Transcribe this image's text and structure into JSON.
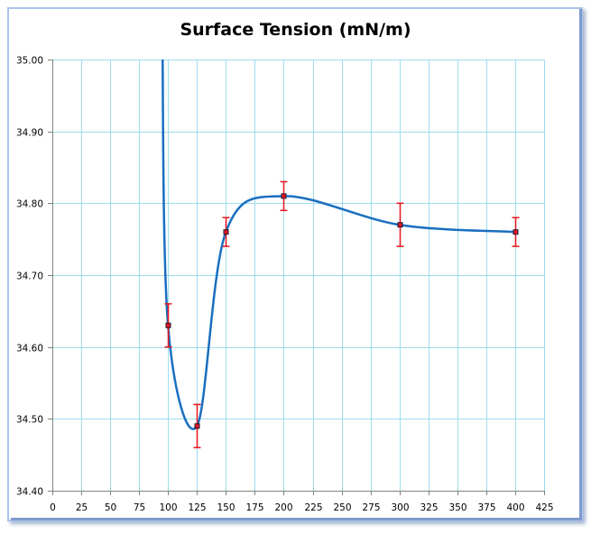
{
  "chart_data": {
    "type": "scatter",
    "title": "Surface Tension (mN/m)",
    "xlabel": "",
    "ylabel": "",
    "xlim": [
      0,
      425
    ],
    "ylim": [
      34.4,
      35.0
    ],
    "x_ticks": [
      0,
      25,
      50,
      75,
      100,
      125,
      150,
      175,
      200,
      225,
      250,
      275,
      300,
      325,
      350,
      375,
      400,
      425
    ],
    "x_tick_labels": [
      "0",
      "25",
      "50",
      "75",
      "100",
      "125",
      "150",
      "175",
      "200",
      "225",
      "250",
      "275",
      "300",
      "325",
      "350",
      "375",
      "400",
      "425"
    ],
    "y_ticks": [
      34.4,
      34.5,
      34.6,
      34.7,
      34.8,
      34.9,
      35.0
    ],
    "y_tick_labels": [
      "34.40",
      "34.50",
      "34.60",
      "34.70",
      "34.80",
      "34.90",
      "35.00"
    ],
    "grid": true,
    "legend": "none",
    "series": [
      {
        "name": "Surface Tension",
        "line": "smoothed",
        "color": "#1a6fc0",
        "marker_color": "#e8141c",
        "errorbar_color": "#e8141c",
        "points": [
          {
            "x": 100,
            "y": 34.63,
            "y_err_plus": 0.03,
            "y_err_minus": 0.03
          },
          {
            "x": 125,
            "y": 34.49,
            "y_err_plus": 0.03,
            "y_err_minus": 0.03
          },
          {
            "x": 150,
            "y": 34.76,
            "y_err_plus": 0.02,
            "y_err_minus": 0.02
          },
          {
            "x": 200,
            "y": 34.81,
            "y_err_plus": 0.02,
            "y_err_minus": 0.02
          },
          {
            "x": 300,
            "y": 34.77,
            "y_err_plus": 0.03,
            "y_err_minus": 0.03
          },
          {
            "x": 400,
            "y": 34.76,
            "y_err_plus": 0.02,
            "y_err_minus": 0.02
          }
        ],
        "curve_enters_from_above_at_x": 95
      }
    ]
  },
  "colors": {
    "gridline": "#9fdcef",
    "axis": "#808080",
    "frame_border": "#a9c4ea"
  }
}
